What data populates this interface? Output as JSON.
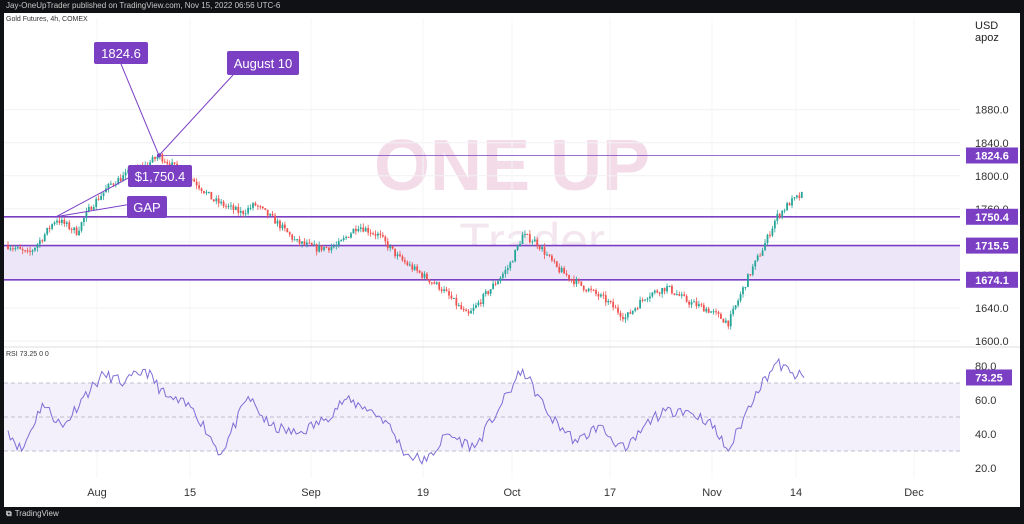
{
  "header": {
    "published": "Jay-OneUpTrader published on TradingView.com, Nov 15, 2022 06:56 UTC-6"
  },
  "symbol": "Gold Futures, 4h, COMEX",
  "currency": [
    "USD",
    "apoz"
  ],
  "watermark": {
    "top": "ONE UP",
    "bottom": "Trader"
  },
  "footer": {
    "logo": "TradingView"
  },
  "colors": {
    "up": "#26a69a",
    "down": "#ef5350",
    "accent": "#7b3fc4",
    "zone": "#ece6f8",
    "rsi": "#7e6fd6"
  },
  "chart_data": [
    {
      "type": "candlestick",
      "title": "Gold Futures, 4h, COMEX",
      "y_unit": "USD",
      "ylim": [
        1600,
        1890
      ],
      "y_ticks": [
        1600.0,
        1640.0,
        1680.0,
        1720.0,
        1760.0,
        1800.0,
        1840.0,
        1880.0
      ],
      "x_ticks": [
        "Aug",
        "15",
        "Sep",
        "19",
        "Oct",
        "17",
        "Nov",
        "14",
        "Dec"
      ],
      "close_path": [
        [
          "2022-07-21",
          1716
        ],
        [
          "2022-07-24",
          1705
        ],
        [
          "2022-07-26",
          1725
        ],
        [
          "2022-07-28",
          1748
        ],
        [
          "2022-07-31",
          1732
        ],
        [
          "2022-08-02",
          1762
        ],
        [
          "2022-08-05",
          1790
        ],
        [
          "2022-08-08",
          1805
        ],
        [
          "2022-08-10",
          1812
        ],
        [
          "2022-08-12",
          1824.6
        ],
        [
          "2022-08-14",
          1812
        ],
        [
          "2022-08-17",
          1795
        ],
        [
          "2022-08-20",
          1770
        ],
        [
          "2022-08-24",
          1755
        ],
        [
          "2022-08-26",
          1765
        ],
        [
          "2022-08-29",
          1745
        ],
        [
          "2022-09-01",
          1720
        ],
        [
          "2022-09-04",
          1712
        ],
        [
          "2022-09-07",
          1715
        ],
        [
          "2022-09-10",
          1740
        ],
        [
          "2022-09-13",
          1728
        ],
        [
          "2022-09-16",
          1700
        ],
        [
          "2022-09-19",
          1682
        ],
        [
          "2022-09-22",
          1665
        ],
        [
          "2022-09-26",
          1630
        ],
        [
          "2022-09-29",
          1660
        ],
        [
          "2022-10-02",
          1690
        ],
        [
          "2022-10-04",
          1728
        ],
        [
          "2022-10-06",
          1720
        ],
        [
          "2022-10-09",
          1688
        ],
        [
          "2022-10-12",
          1670
        ],
        [
          "2022-10-16",
          1650
        ],
        [
          "2022-10-19",
          1628
        ],
        [
          "2022-10-22",
          1655
        ],
        [
          "2022-10-25",
          1665
        ],
        [
          "2022-10-28",
          1648
        ],
        [
          "2022-10-31",
          1638
        ],
        [
          "2022-11-03",
          1622
        ],
        [
          "2022-11-06",
          1680
        ],
        [
          "2022-11-08",
          1712
        ],
        [
          "2022-11-10",
          1750
        ],
        [
          "2022-11-12",
          1768
        ],
        [
          "2022-11-14",
          1778
        ]
      ],
      "levels": [
        {
          "label": "1824.6",
          "value": 1824.6,
          "style": "thin"
        },
        {
          "label": "1750.4",
          "value": 1750.4,
          "style": "thick"
        },
        {
          "label": "1715.5",
          "value": 1715.5,
          "style": "thick"
        },
        {
          "label": "1674.1",
          "value": 1674.1,
          "style": "thick"
        }
      ],
      "zone": {
        "from": 1674.1,
        "to": 1715.5
      },
      "annotations": [
        {
          "text": "1824.6",
          "kind": "label"
        },
        {
          "text": "August 10",
          "kind": "label"
        },
        {
          "text": "$1,750.4",
          "kind": "label"
        },
        {
          "text": "GAP",
          "kind": "label"
        }
      ]
    },
    {
      "type": "line",
      "title": "RSI",
      "legend": "RSI 73.25 0 0",
      "last_value": "73.25",
      "ylim": [
        20,
        90
      ],
      "y_ticks": [
        20.0,
        40.0,
        60.0,
        80.0
      ],
      "bands": [
        30,
        50,
        70
      ],
      "path": [
        [
          "2022-07-21",
          42
        ],
        [
          "2022-07-23",
          30
        ],
        [
          "2022-07-26",
          58
        ],
        [
          "2022-07-29",
          44
        ],
        [
          "2022-08-01",
          62
        ],
        [
          "2022-08-04",
          75
        ],
        [
          "2022-08-07",
          70
        ],
        [
          "2022-08-10",
          78
        ],
        [
          "2022-08-13",
          62
        ],
        [
          "2022-08-17",
          55
        ],
        [
          "2022-08-21",
          28
        ],
        [
          "2022-08-25",
          62
        ],
        [
          "2022-08-28",
          45
        ],
        [
          "2022-09-01",
          40
        ],
        [
          "2022-09-05",
          48
        ],
        [
          "2022-09-08",
          60
        ],
        [
          "2022-09-11",
          56
        ],
        [
          "2022-09-14",
          48
        ],
        [
          "2022-09-17",
          28
        ],
        [
          "2022-09-20",
          24
        ],
        [
          "2022-09-23",
          40
        ],
        [
          "2022-09-27",
          32
        ],
        [
          "2022-10-01",
          58
        ],
        [
          "2022-10-04",
          78
        ],
        [
          "2022-10-08",
          50
        ],
        [
          "2022-10-12",
          35
        ],
        [
          "2022-10-15",
          45
        ],
        [
          "2022-10-19",
          30
        ],
        [
          "2022-10-23",
          50
        ],
        [
          "2022-10-27",
          55
        ],
        [
          "2022-10-31",
          48
        ],
        [
          "2022-11-03",
          30
        ],
        [
          "2022-11-07",
          65
        ],
        [
          "2022-11-10",
          82
        ],
        [
          "2022-11-12",
          76
        ],
        [
          "2022-11-14",
          73.25
        ]
      ]
    }
  ]
}
